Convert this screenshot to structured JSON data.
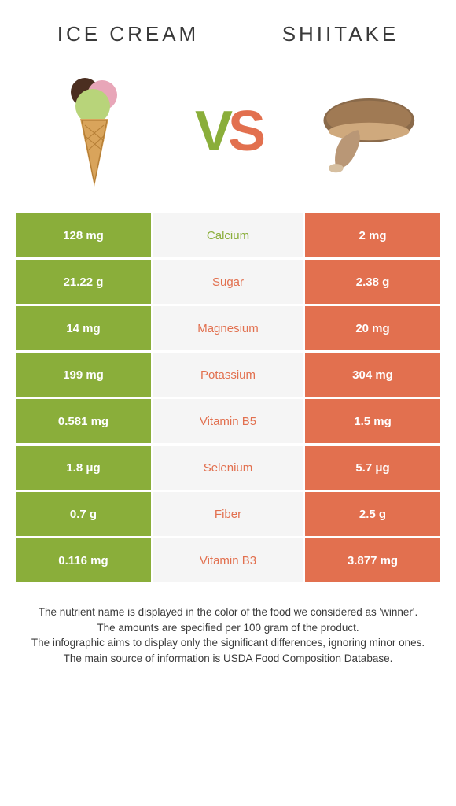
{
  "header": {
    "left_title": "Ice Cream",
    "right_title": "Shiitake",
    "vs_v": "V",
    "vs_s": "S"
  },
  "colors": {
    "green": "#8aae3a",
    "orange": "#e2704f",
    "mid_bg": "#f5f5f5",
    "text": "#3a3a3a"
  },
  "table": {
    "rows": [
      {
        "left": "128 mg",
        "label": "Calcium",
        "right": "2 mg",
        "winner": "green"
      },
      {
        "left": "21.22 g",
        "label": "Sugar",
        "right": "2.38 g",
        "winner": "orange"
      },
      {
        "left": "14 mg",
        "label": "Magnesium",
        "right": "20 mg",
        "winner": "orange"
      },
      {
        "left": "199 mg",
        "label": "Potassium",
        "right": "304 mg",
        "winner": "orange"
      },
      {
        "left": "0.581 mg",
        "label": "Vitamin B5",
        "right": "1.5 mg",
        "winner": "orange"
      },
      {
        "left": "1.8 μg",
        "label": "Selenium",
        "right": "5.7 μg",
        "winner": "orange"
      },
      {
        "left": "0.7 g",
        "label": "Fiber",
        "right": "2.5 g",
        "winner": "orange"
      },
      {
        "left": "0.116 mg",
        "label": "Vitamin B3",
        "right": "3.877 mg",
        "winner": "orange"
      }
    ]
  },
  "footer": {
    "l1": "The nutrient name is displayed in the color of the food we considered as 'winner'.",
    "l2": "The amounts are specified per 100 gram of the product.",
    "l3": "The infographic aims to display only the significant differences, ignoring minor ones.",
    "l4": "The main source of information is USDA Food Composition Database."
  }
}
